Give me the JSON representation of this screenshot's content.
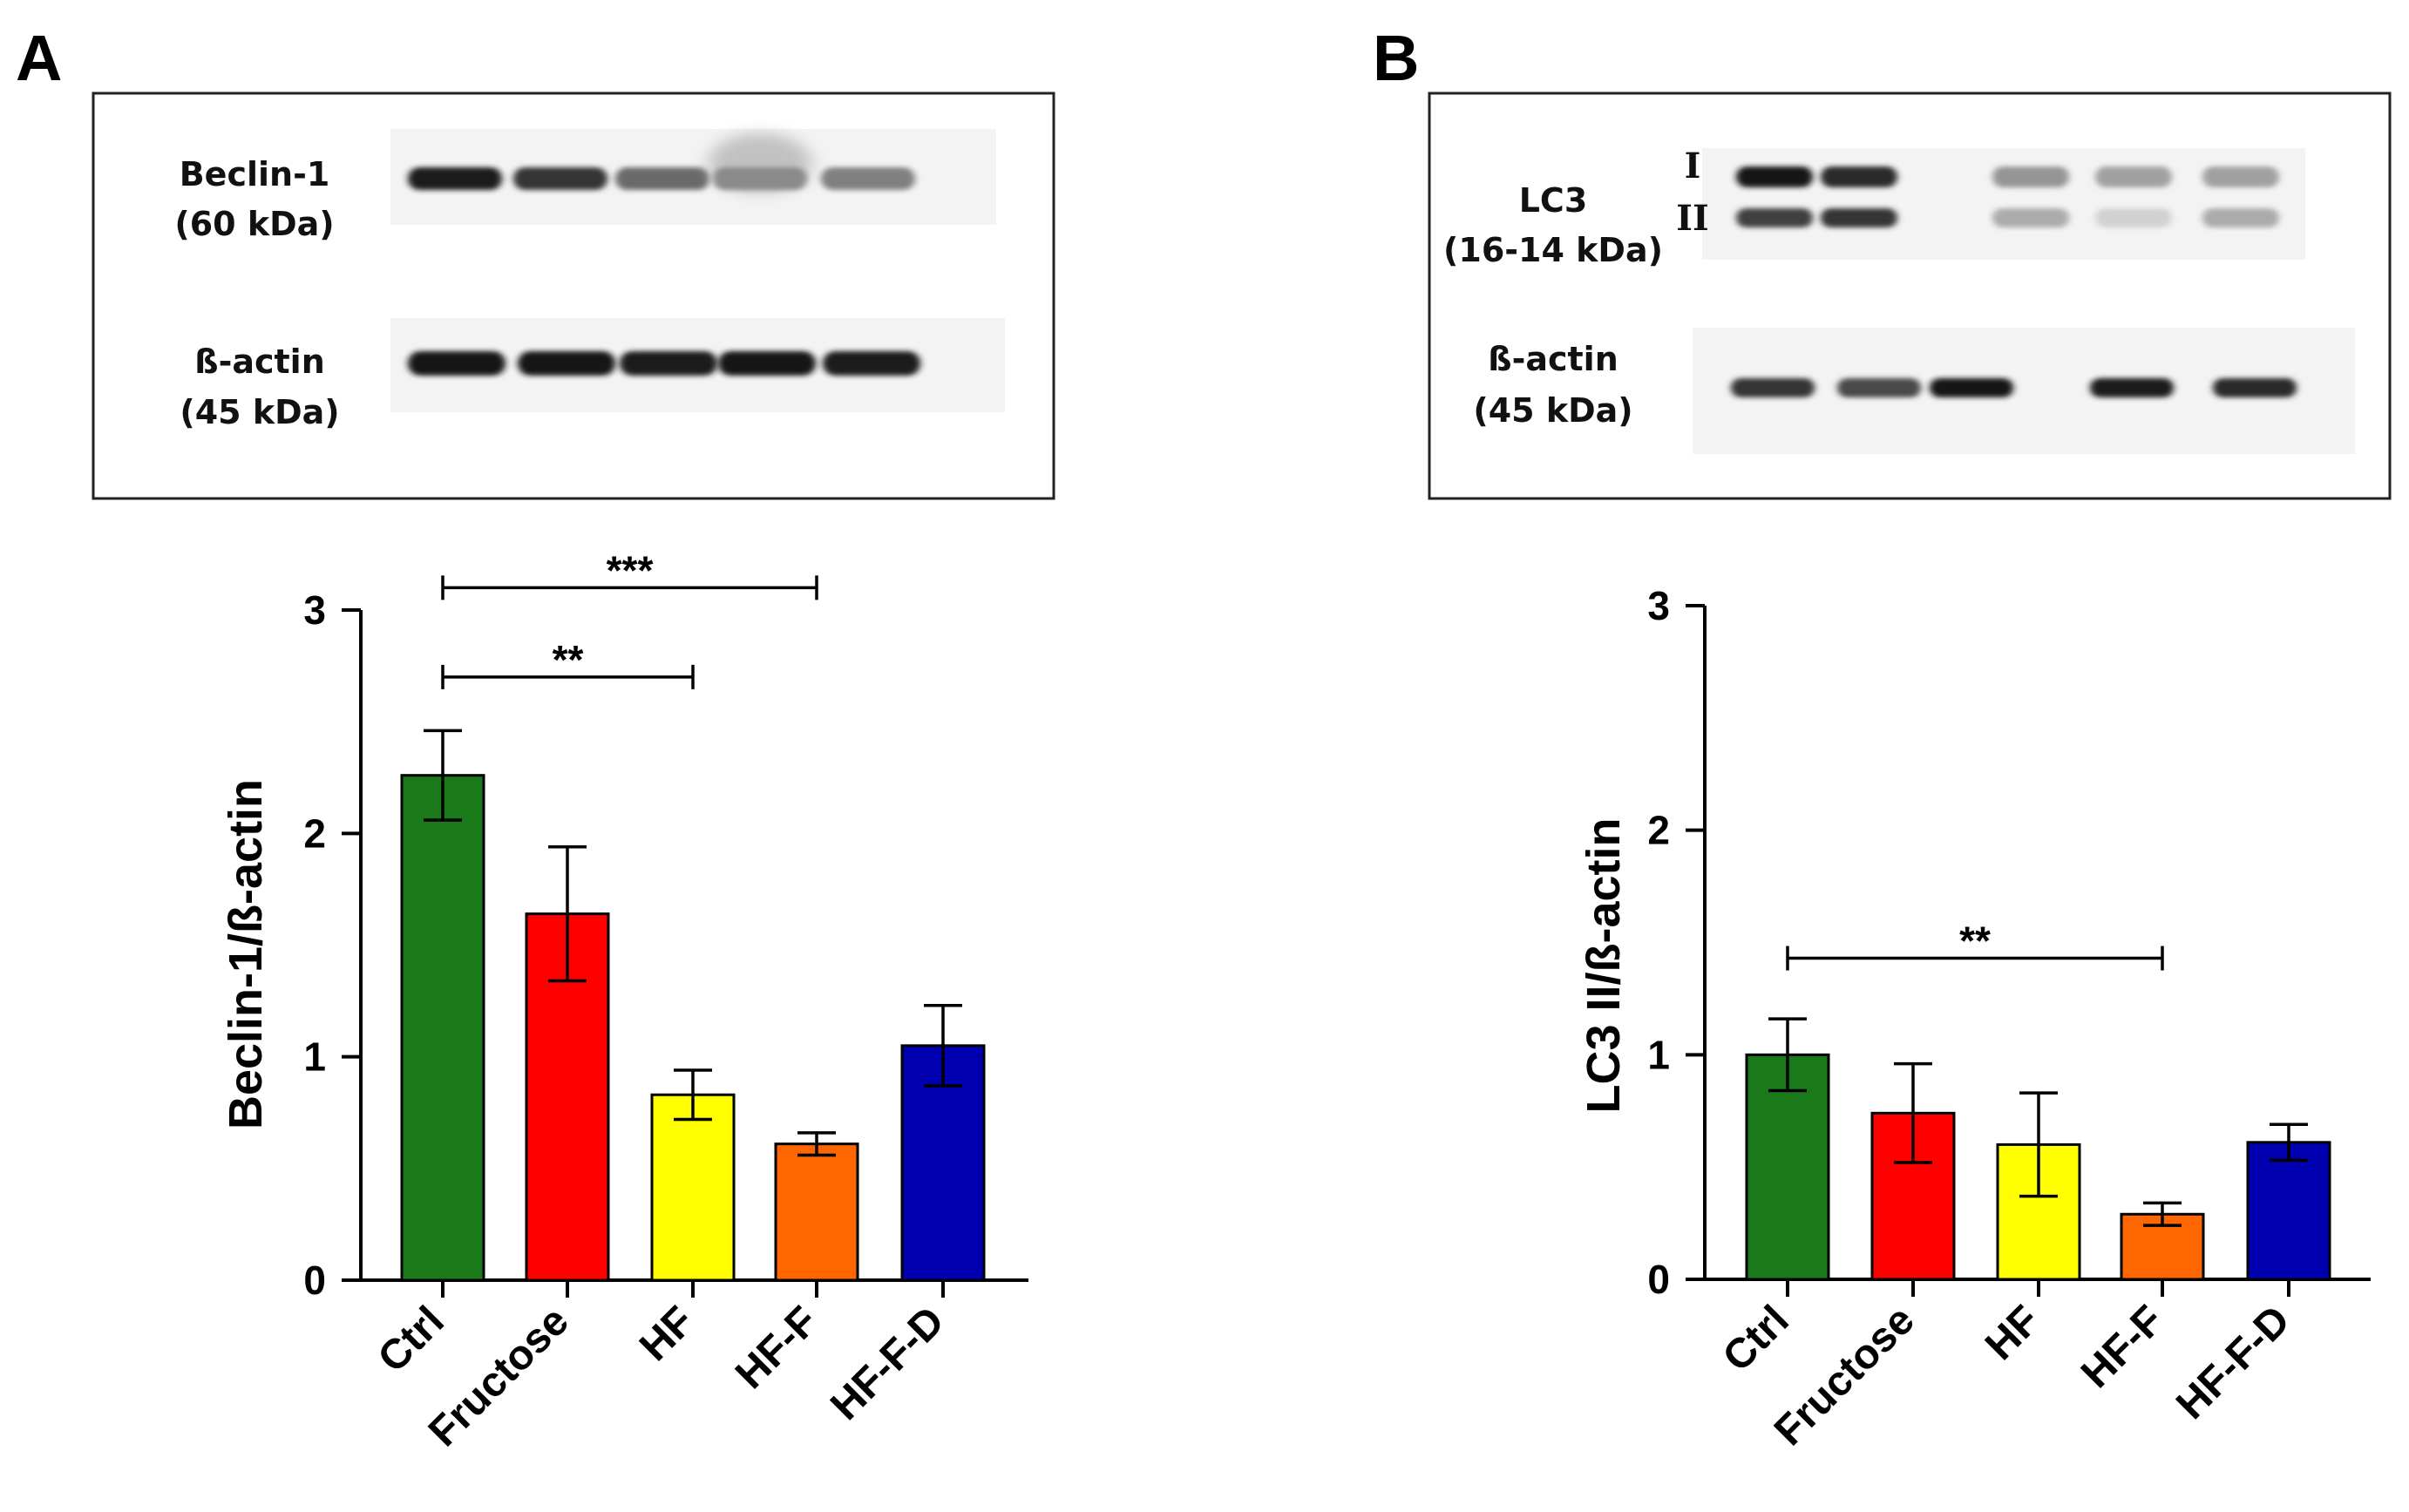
{
  "panels": [
    {
      "letter": "A",
      "blot": {
        "rows": [
          {
            "label_line1": "Beclin-1",
            "label_line2": "(60 kDa)",
            "intensities": [
              0.95,
              0.85,
              0.6,
              0.45,
              0.5
            ],
            "smear": [
              0,
              0,
              0,
              0.35,
              0
            ]
          },
          {
            "label_line1": "ß-actin",
            "label_line2": "(45 kDa)",
            "intensities": [
              1.0,
              1.0,
              0.95,
              1.0,
              0.95
            ],
            "smear": [
              0,
              0,
              0,
              0,
              0
            ]
          }
        ]
      }
    },
    {
      "letter": "B",
      "blot": {
        "lc3": {
          "label_line1": "LC3",
          "label_line2": "(16-14 kDa)",
          "band_i": "I",
          "band_ii": "II",
          "i_intensities": [
            1.0,
            0.9,
            0.4,
            0.35,
            0.35
          ],
          "ii_intensities": [
            0.8,
            0.85,
            0.3,
            0.12,
            0.3
          ]
        },
        "actin": {
          "label_line1": "ß-actin",
          "label_line2": "(45 kDa)",
          "intensities": [
            0.85,
            0.75,
            1.0,
            0.95,
            0.9
          ]
        }
      }
    }
  ],
  "chart_data": [
    {
      "type": "bar",
      "title": "",
      "xlabel": "",
      "ylabel": "Beclin-1/ß-actin",
      "ylim": [
        0,
        3
      ],
      "yticks": [
        0,
        1,
        2,
        3
      ],
      "categories": [
        "Ctrl",
        "Fructose",
        "HF",
        "HF-F",
        "HF-F-D"
      ],
      "values": [
        2.26,
        1.64,
        0.83,
        0.61,
        1.05
      ],
      "errors": [
        0.2,
        0.3,
        0.11,
        0.05,
        0.18
      ],
      "colors": [
        "#1a7a1a",
        "#ff0000",
        "#ffff00",
        "#ff6600",
        "#0000b0"
      ],
      "significance": [
        {
          "from": 0,
          "to": 3,
          "label": "***",
          "y": 3.1
        },
        {
          "from": 0,
          "to": 2,
          "label": "**",
          "y": 2.7
        }
      ]
    },
    {
      "type": "bar",
      "title": "",
      "xlabel": "",
      "ylabel": "LC3 II/ß-actin",
      "ylim": [
        0,
        3
      ],
      "yticks": [
        0,
        1,
        2,
        3
      ],
      "categories": [
        "Ctrl",
        "Fructose",
        "HF",
        "HF-F",
        "HF-F-D"
      ],
      "values": [
        1.0,
        0.74,
        0.6,
        0.29,
        0.61
      ],
      "errors": [
        0.16,
        0.22,
        0.23,
        0.05,
        0.08
      ],
      "colors": [
        "#1a7a1a",
        "#ff0000",
        "#ffff00",
        "#ff6600",
        "#0000b0"
      ],
      "significance": [
        {
          "from": 0,
          "to": 3,
          "label": "**",
          "y": 1.43
        }
      ]
    }
  ]
}
